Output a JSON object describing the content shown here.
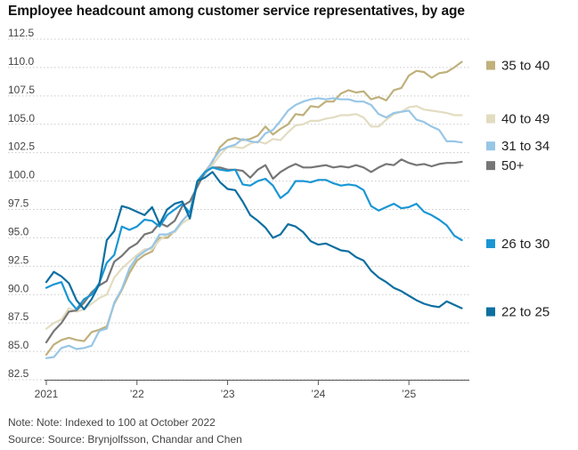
{
  "title": "Employee headcount among customer service representatives, by age",
  "note": "Note: Note: Indexed to 100 at October 2022",
  "source": "Source: Source: Brynjolfsson, Chandar and Chen",
  "chart_data": {
    "type": "line",
    "title": "Employee headcount among customer service representatives, by age",
    "xlabel": "",
    "ylabel": "",
    "ylim": [
      82.5,
      112.5
    ],
    "yticks": [
      82.5,
      85.0,
      87.5,
      90.0,
      92.5,
      95.0,
      97.5,
      100.0,
      102.5,
      105.0,
      107.5,
      110.0,
      112.5
    ],
    "ytick_labels": [
      "82.5",
      "85.0",
      "87.5",
      "90.0",
      "92.5",
      "95.0",
      "97.5",
      "100.0",
      "102.5",
      "105.0",
      "107.5",
      "110.0",
      "112.5"
    ],
    "x_unit": "months since January 2021",
    "xlim": [
      0,
      56
    ],
    "xticks": [
      0,
      12,
      24,
      36,
      48
    ],
    "xtick_labels": [
      "2021",
      "’22",
      "’23",
      "’24",
      "’25"
    ],
    "grid": "horizontal dotted",
    "legend": "right side, labels next to line ends",
    "series": [
      {
        "name": "35 to 40",
        "color": "#bfb07c",
        "x": [
          0,
          1,
          2,
          3,
          4,
          5,
          6,
          7,
          8,
          9,
          10,
          11,
          12,
          13,
          14,
          15,
          16,
          17,
          18,
          19,
          20,
          21,
          22,
          23,
          24,
          25,
          26,
          27,
          28,
          29,
          30,
          31,
          32,
          33,
          34,
          35,
          36,
          37,
          38,
          39,
          40,
          41,
          42,
          43,
          44,
          45,
          46,
          47,
          48,
          49,
          50,
          51,
          52,
          53,
          54,
          55
        ],
        "y": [
          84.7,
          85.6,
          86.0,
          86.2,
          86.0,
          85.9,
          86.7,
          86.9,
          87.2,
          89.2,
          90.4,
          91.9,
          93.0,
          93.5,
          93.8,
          95.0,
          95.0,
          95.6,
          96.5,
          97.2,
          99.9,
          100.8,
          101.7,
          103.0,
          103.6,
          103.8,
          103.6,
          103.7,
          104.0,
          104.8,
          104.1,
          104.6,
          105.0,
          105.9,
          105.8,
          106.6,
          106.5,
          107.0,
          107.0,
          107.7,
          108.0,
          107.8,
          107.9,
          107.2,
          107.4,
          107.1,
          108.0,
          108.2,
          109.3,
          109.7,
          109.6,
          109.1,
          109.5,
          109.6,
          110.0,
          110.5
        ]
      },
      {
        "name": "40 to 49",
        "color": "#e2dcc1",
        "x": [
          0,
          1,
          2,
          3,
          4,
          5,
          6,
          7,
          8,
          9,
          10,
          11,
          12,
          13,
          14,
          15,
          16,
          17,
          18,
          19,
          20,
          21,
          22,
          23,
          24,
          25,
          26,
          27,
          28,
          29,
          30,
          31,
          32,
          33,
          34,
          35,
          36,
          37,
          38,
          39,
          40,
          41,
          42,
          43,
          44,
          45,
          46,
          47,
          48,
          49,
          50,
          51,
          52,
          53,
          54,
          55
        ],
        "y": [
          87.0,
          87.5,
          87.8,
          88.8,
          88.5,
          88.7,
          89.2,
          89.7,
          90.0,
          91.5,
          92.3,
          92.9,
          93.5,
          94.0,
          94.0,
          94.8,
          95.3,
          95.5,
          96.3,
          96.7,
          99.8,
          100.6,
          101.4,
          102.3,
          103.0,
          103.0,
          102.9,
          103.3,
          103.5,
          103.3,
          103.7,
          103.6,
          104.3,
          104.9,
          105.0,
          105.3,
          105.3,
          105.5,
          105.6,
          105.8,
          105.8,
          105.9,
          105.6,
          104.8,
          104.8,
          105.4,
          105.9,
          106.1,
          106.5,
          106.6,
          106.3,
          106.2,
          106.1,
          106.0,
          105.8,
          105.8
        ]
      },
      {
        "name": "31 to 34",
        "color": "#98c6e6",
        "x": [
          0,
          1,
          2,
          3,
          4,
          5,
          6,
          7,
          8,
          9,
          10,
          11,
          12,
          13,
          14,
          15,
          16,
          17,
          18,
          19,
          20,
          21,
          22,
          23,
          24,
          25,
          26,
          27,
          28,
          29,
          30,
          31,
          32,
          33,
          34,
          35,
          36,
          37,
          38,
          39,
          40,
          41,
          42,
          43,
          44,
          45,
          46,
          47,
          48,
          49,
          50,
          51,
          52,
          53,
          54,
          55
        ],
        "y": [
          84.4,
          84.5,
          85.3,
          85.5,
          85.2,
          85.3,
          85.5,
          86.8,
          87.0,
          89.3,
          90.5,
          92.3,
          93.3,
          93.8,
          94.2,
          95.3,
          95.3,
          95.6,
          96.5,
          97.2,
          99.8,
          100.6,
          101.8,
          102.7,
          103.0,
          103.2,
          103.7,
          103.5,
          103.4,
          104.2,
          104.5,
          105.3,
          106.2,
          106.7,
          107.0,
          107.2,
          107.3,
          107.2,
          107.3,
          107.2,
          107.2,
          107.0,
          107.0,
          106.7,
          105.9,
          105.6,
          106.0,
          106.1,
          106.2,
          105.4,
          105.2,
          104.8,
          104.5,
          103.5,
          103.5,
          103.4
        ]
      },
      {
        "name": "50+",
        "color": "#767676",
        "x": [
          0,
          1,
          2,
          3,
          4,
          5,
          6,
          7,
          8,
          9,
          10,
          11,
          12,
          13,
          14,
          15,
          16,
          17,
          18,
          19,
          20,
          21,
          22,
          23,
          24,
          25,
          26,
          27,
          28,
          29,
          30,
          31,
          32,
          33,
          34,
          35,
          36,
          37,
          38,
          39,
          40,
          41,
          42,
          43,
          44,
          45,
          46,
          47,
          48,
          49,
          50,
          51,
          52,
          53,
          54,
          55
        ],
        "y": [
          85.8,
          86.8,
          87.5,
          88.5,
          88.6,
          89.3,
          90.2,
          90.8,
          91.2,
          92.9,
          93.4,
          94.1,
          94.5,
          95.3,
          95.5,
          96.3,
          96.0,
          96.5,
          97.8,
          98.2,
          99.5,
          100.8,
          101.2,
          101.2,
          101.0,
          101.0,
          100.9,
          100.3,
          101.0,
          101.4,
          100.2,
          100.8,
          101.2,
          101.5,
          101.2,
          101.2,
          101.3,
          101.4,
          101.2,
          101.3,
          101.2,
          101.4,
          101.2,
          100.8,
          101.2,
          101.5,
          101.4,
          101.9,
          101.6,
          101.4,
          101.5,
          101.3,
          101.5,
          101.6,
          101.6,
          101.7
        ]
      },
      {
        "name": "26 to 30",
        "color": "#1a96d4",
        "x": [
          0,
          1,
          2,
          3,
          4,
          5,
          6,
          7,
          8,
          9,
          10,
          11,
          12,
          13,
          14,
          15,
          16,
          17,
          18,
          19,
          20,
          21,
          22,
          23,
          24,
          25,
          26,
          27,
          28,
          29,
          30,
          31,
          32,
          33,
          34,
          35,
          36,
          37,
          38,
          39,
          40,
          41,
          42,
          43,
          44,
          45,
          46,
          47,
          48,
          49,
          50,
          51,
          52,
          53,
          54,
          55
        ],
        "y": [
          90.6,
          90.9,
          91.1,
          89.5,
          88.7,
          89.6,
          90.0,
          91.0,
          92.8,
          93.5,
          96.0,
          95.7,
          96.0,
          96.6,
          96.5,
          96.0,
          97.0,
          97.5,
          98.0,
          97.2,
          100.0,
          100.8,
          101.2,
          101.0,
          100.9,
          101.0,
          99.7,
          99.6,
          100.0,
          100.2,
          99.6,
          98.5,
          99.0,
          100.0,
          100.0,
          99.9,
          100.1,
          100.1,
          99.8,
          99.6,
          99.7,
          99.6,
          99.2,
          97.8,
          97.4,
          97.7,
          98.0,
          97.6,
          97.7,
          98.0,
          97.3,
          97.0,
          96.6,
          96.1,
          95.2,
          94.8
        ]
      },
      {
        "name": "22 to 25",
        "color": "#0d6fa0",
        "x": [
          0,
          1,
          2,
          3,
          4,
          5,
          6,
          7,
          8,
          9,
          10,
          11,
          12,
          13,
          14,
          15,
          16,
          17,
          18,
          19,
          20,
          21,
          22,
          23,
          24,
          25,
          26,
          27,
          28,
          29,
          30,
          31,
          32,
          33,
          34,
          35,
          36,
          37,
          38,
          39,
          40,
          41,
          42,
          43,
          44,
          45,
          46,
          47,
          48,
          49,
          50,
          51,
          52,
          53,
          54,
          55
        ],
        "y": [
          91.1,
          92.0,
          91.6,
          91.0,
          89.5,
          88.7,
          89.6,
          90.9,
          94.8,
          95.6,
          97.8,
          97.6,
          97.3,
          97.0,
          97.7,
          96.2,
          97.5,
          98.0,
          98.2,
          96.7,
          100.0,
          100.3,
          100.8,
          99.9,
          99.3,
          99.2,
          98.2,
          97.0,
          96.5,
          95.9,
          95.0,
          95.3,
          96.2,
          96.0,
          95.5,
          94.7,
          94.4,
          94.5,
          94.2,
          93.9,
          93.8,
          93.3,
          93.0,
          92.1,
          91.5,
          91.1,
          90.6,
          90.3,
          89.9,
          89.5,
          89.2,
          89.0,
          88.9,
          89.4,
          89.1,
          88.8
        ]
      }
    ]
  }
}
